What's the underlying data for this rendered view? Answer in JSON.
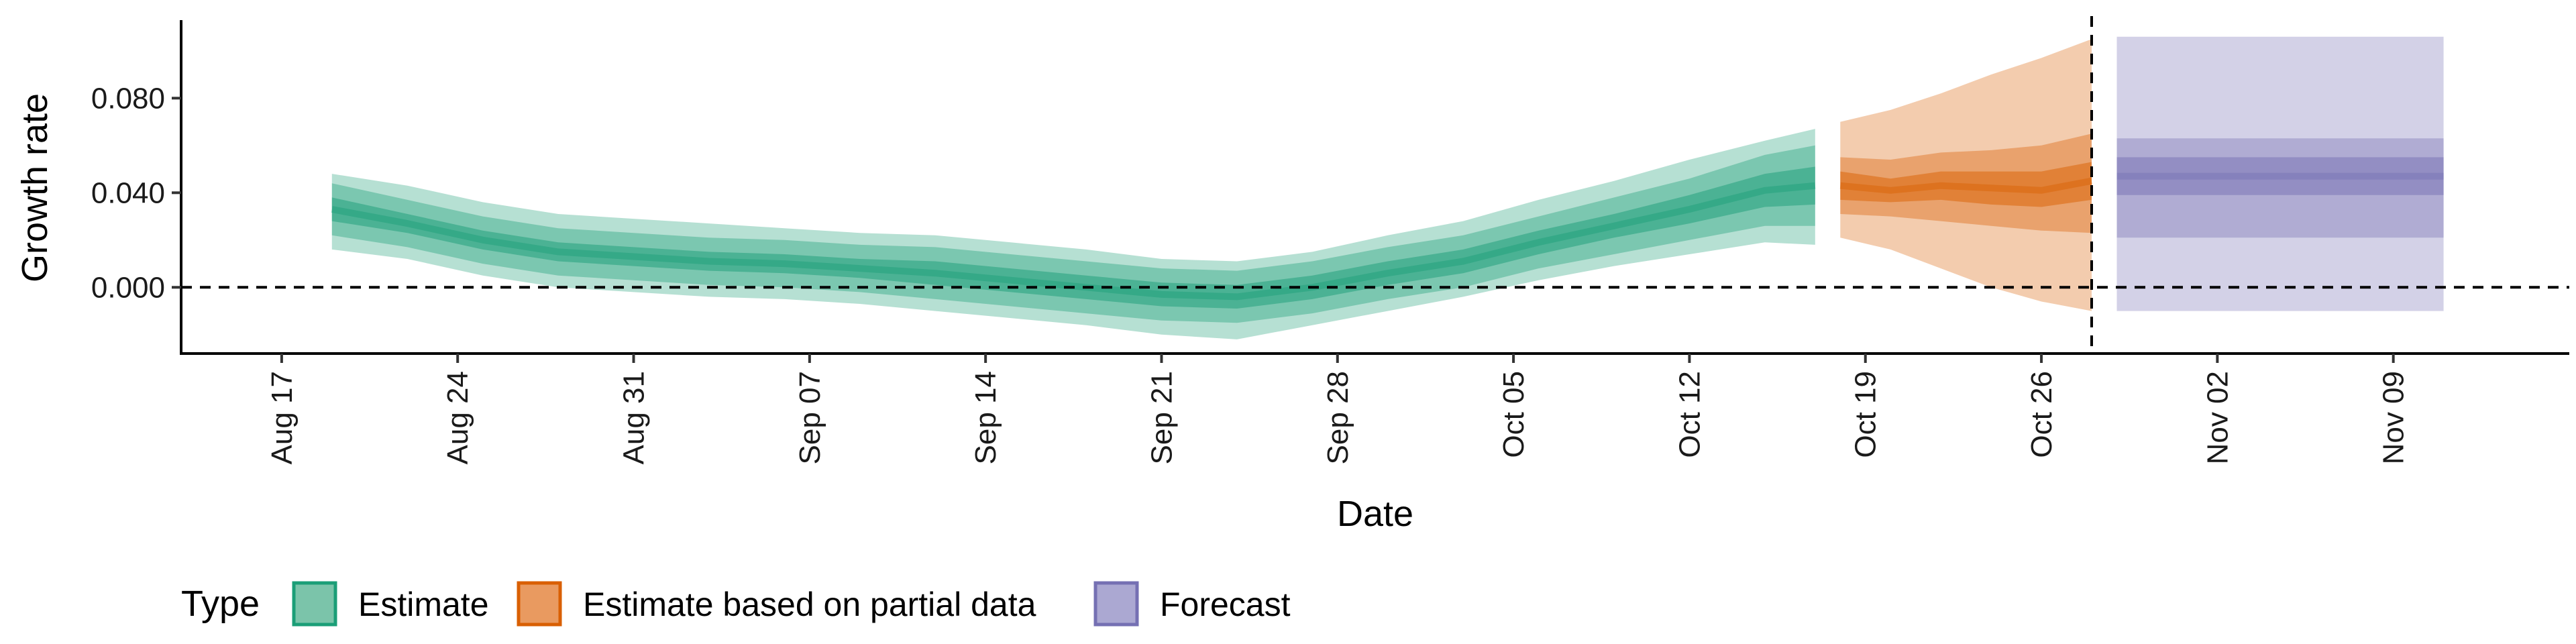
{
  "chart_data": {
    "type": "area",
    "xlabel": "Date",
    "ylabel": "Growth rate",
    "xlim": [
      "2020-08-13",
      "2020-11-16"
    ],
    "ylim": [
      -0.028,
      0.113
    ],
    "y_ticks": [
      0.0,
      0.04,
      0.08
    ],
    "y_tick_labels": [
      "0.000",
      "0.040",
      "0.080"
    ],
    "x_ticks": [
      "2020-08-17",
      "2020-08-24",
      "2020-08-31",
      "2020-09-07",
      "2020-09-14",
      "2020-09-21",
      "2020-09-28",
      "2020-10-05",
      "2020-10-12",
      "2020-10-19",
      "2020-10-26",
      "2020-11-02",
      "2020-11-09"
    ],
    "x_tick_labels": [
      "Aug 17",
      "Aug 24",
      "Aug 31",
      "Sep 07",
      "Sep 14",
      "Sep 21",
      "Sep 28",
      "Oct 05",
      "Oct 12",
      "Oct 19",
      "Oct 26",
      "Nov 02",
      "Nov 09"
    ],
    "hline": 0.0,
    "vline": "2020-10-28",
    "grid": false,
    "legend": {
      "title": "Type",
      "position": "bottom",
      "entries": [
        {
          "label": "Estimate",
          "fill": "#7bc4aa",
          "stroke": "#1b9e77"
        },
        {
          "label": "Estimate based on partial data",
          "fill": "#e99a60",
          "stroke": "#d95f02"
        },
        {
          "label": "Forecast",
          "fill": "#aba8d2",
          "stroke": "#7570b3"
        }
      ]
    },
    "series": [
      {
        "name": "Estimate",
        "color": "#1b9e77",
        "x": [
          "2020-08-19",
          "2020-08-22",
          "2020-08-25",
          "2020-08-28",
          "2020-08-31",
          "2020-09-03",
          "2020-09-06",
          "2020-09-09",
          "2020-09-12",
          "2020-09-15",
          "2020-09-18",
          "2020-09-21",
          "2020-09-24",
          "2020-09-27",
          "2020-09-30",
          "2020-10-03",
          "2020-10-06",
          "2020-10-09",
          "2020-10-12",
          "2020-10-15",
          "2020-10-17"
        ],
        "median": [
          0.033,
          0.027,
          0.02,
          0.015,
          0.013,
          0.011,
          0.01,
          0.008,
          0.006,
          0.003,
          0.0,
          -0.003,
          -0.004,
          0.0,
          0.006,
          0.011,
          0.019,
          0.026,
          0.033,
          0.041,
          0.043
        ],
        "band_inner": [
          [
            0.028,
            0.038
          ],
          [
            0.023,
            0.031
          ],
          [
            0.016,
            0.024
          ],
          [
            0.011,
            0.019
          ],
          [
            0.009,
            0.017
          ],
          [
            0.007,
            0.015
          ],
          [
            0.006,
            0.014
          ],
          [
            0.004,
            0.012
          ],
          [
            0.001,
            0.011
          ],
          [
            -0.002,
            0.008
          ],
          [
            -0.005,
            0.005
          ],
          [
            -0.008,
            0.002
          ],
          [
            -0.009,
            0.001
          ],
          [
            -0.005,
            0.005
          ],
          [
            0.001,
            0.011
          ],
          [
            0.006,
            0.016
          ],
          [
            0.014,
            0.024
          ],
          [
            0.021,
            0.031
          ],
          [
            0.027,
            0.039
          ],
          [
            0.034,
            0.048
          ],
          [
            0.035,
            0.051
          ]
        ],
        "band_mid": [
          [
            0.022,
            0.044
          ],
          [
            0.017,
            0.037
          ],
          [
            0.01,
            0.03
          ],
          [
            0.005,
            0.025
          ],
          [
            0.003,
            0.023
          ],
          [
            0.001,
            0.021
          ],
          [
            0.0,
            0.02
          ],
          [
            -0.002,
            0.018
          ],
          [
            -0.005,
            0.017
          ],
          [
            -0.008,
            0.014
          ],
          [
            -0.011,
            0.011
          ],
          [
            -0.014,
            0.008
          ],
          [
            -0.015,
            0.007
          ],
          [
            -0.011,
            0.011
          ],
          [
            -0.005,
            0.017
          ],
          [
            0.0,
            0.022
          ],
          [
            0.008,
            0.03
          ],
          [
            0.014,
            0.038
          ],
          [
            0.02,
            0.046
          ],
          [
            0.026,
            0.056
          ],
          [
            0.026,
            0.06
          ]
        ],
        "band_outer": [
          [
            0.016,
            0.048
          ],
          [
            0.012,
            0.043
          ],
          [
            0.005,
            0.036
          ],
          [
            0.0,
            0.031
          ],
          [
            -0.002,
            0.029
          ],
          [
            -0.004,
            0.027
          ],
          [
            -0.005,
            0.025
          ],
          [
            -0.007,
            0.023
          ],
          [
            -0.01,
            0.022
          ],
          [
            -0.013,
            0.019
          ],
          [
            -0.016,
            0.016
          ],
          [
            -0.02,
            0.012
          ],
          [
            -0.022,
            0.011
          ],
          [
            -0.016,
            0.015
          ],
          [
            -0.01,
            0.022
          ],
          [
            -0.004,
            0.028
          ],
          [
            0.003,
            0.037
          ],
          [
            0.009,
            0.045
          ],
          [
            0.014,
            0.054
          ],
          [
            0.019,
            0.062
          ],
          [
            0.018,
            0.067
          ]
        ]
      },
      {
        "name": "Estimate based on partial data",
        "color": "#d95f02",
        "x": [
          "2020-10-18",
          "2020-10-20",
          "2020-10-22",
          "2020-10-24",
          "2020-10-26",
          "2020-10-28"
        ],
        "median": [
          0.043,
          0.041,
          0.043,
          0.042,
          0.041,
          0.045
        ],
        "band_inner": [
          [
            0.037,
            0.049
          ],
          [
            0.036,
            0.046
          ],
          [
            0.037,
            0.049
          ],
          [
            0.035,
            0.049
          ],
          [
            0.034,
            0.049
          ],
          [
            0.037,
            0.053
          ]
        ],
        "band_mid": [
          [
            0.031,
            0.055
          ],
          [
            0.03,
            0.054
          ],
          [
            0.028,
            0.057
          ],
          [
            0.026,
            0.058
          ],
          [
            0.024,
            0.06
          ],
          [
            0.023,
            0.065
          ]
        ],
        "band_outer": [
          [
            0.021,
            0.07
          ],
          [
            0.016,
            0.075
          ],
          [
            0.008,
            0.082
          ],
          [
            0.0,
            0.09
          ],
          [
            -0.006,
            0.097
          ],
          [
            -0.01,
            0.105
          ]
        ]
      },
      {
        "name": "Forecast",
        "color": "#7570b3",
        "x": [
          "2020-10-29",
          "2020-11-11"
        ],
        "median": [
          0.047,
          0.047
        ],
        "band_inner": [
          [
            0.039,
            0.055
          ],
          [
            0.039,
            0.055
          ]
        ],
        "band_mid": [
          [
            0.021,
            0.063
          ],
          [
            0.021,
            0.063
          ]
        ],
        "band_outer": [
          [
            -0.01,
            0.106
          ],
          [
            -0.01,
            0.106
          ]
        ]
      }
    ]
  }
}
